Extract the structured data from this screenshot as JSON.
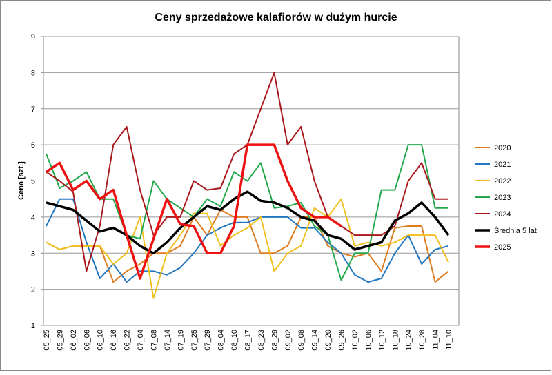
{
  "chart_data": {
    "type": "line",
    "title": "Ceny sprzedażowe kalafiorów w dużym hurcie",
    "y_label": "Cena [szt.]",
    "categories": [
      "05_25",
      "05_29",
      "06_02",
      "06_06",
      "06_10",
      "06_16",
      "06_22",
      "07_04",
      "07_08",
      "07_14",
      "07_19",
      "07_25",
      "07_29",
      "08_04",
      "08_10",
      "08_17",
      "08_23",
      "08_29",
      "09_02",
      "09_08",
      "09_14",
      "09_20",
      "09_26",
      "10_02",
      "10_06",
      "10_12",
      "10_18",
      "10_24",
      "10_28",
      "11_04",
      "11_10"
    ],
    "ylim": [
      1,
      9
    ],
    "yticks": [
      1,
      2,
      3,
      4,
      5,
      6,
      7,
      8,
      9
    ],
    "grid": true,
    "legend": "right",
    "series": [
      {
        "name": "2020",
        "color": "#e07b20",
        "width": 2,
        "values": [
          3.3,
          3.1,
          3.2,
          3.2,
          3.2,
          2.2,
          2.5,
          2.7,
          3.0,
          3.0,
          3.2,
          4.0,
          3.5,
          4.2,
          4.0,
          4.0,
          3.0,
          3.0,
          3.2,
          4.0,
          4.0,
          3.2,
          3.0,
          2.9,
          3.0,
          2.5,
          3.7,
          3.75,
          3.75,
          2.2,
          2.5
        ]
      },
      {
        "name": "2021",
        "color": "#2277c0",
        "width": 2,
        "values": [
          3.75,
          4.5,
          4.5,
          3.3,
          2.3,
          2.7,
          2.2,
          2.5,
          2.5,
          2.4,
          2.6,
          3.0,
          3.5,
          3.7,
          3.85,
          3.85,
          4.0,
          4.0,
          4.0,
          3.7,
          3.7,
          3.3,
          3.0,
          2.4,
          2.2,
          2.3,
          3.0,
          3.5,
          2.7,
          3.1,
          3.2
        ]
      },
      {
        "name": "2022",
        "color": "#f2c01e",
        "width": 2,
        "values": [
          3.3,
          3.1,
          3.2,
          3.2,
          3.2,
          2.7,
          3.0,
          4.0,
          1.75,
          3.0,
          3.5,
          4.1,
          4.1,
          3.2,
          3.5,
          3.7,
          4.0,
          2.5,
          3.0,
          3.2,
          4.25,
          4.0,
          4.5,
          3.2,
          3.3,
          3.2,
          3.3,
          3.5,
          3.5,
          3.5,
          2.75
        ]
      },
      {
        "name": "2023",
        "color": "#22a84a",
        "width": 2,
        "values": [
          5.75,
          4.8,
          5.0,
          5.25,
          4.5,
          4.5,
          3.5,
          3.4,
          5.0,
          4.5,
          4.25,
          4.0,
          4.5,
          4.3,
          5.25,
          5.0,
          5.5,
          4.25,
          4.3,
          4.4,
          3.75,
          3.5,
          2.25,
          3.0,
          3.0,
          4.75,
          4.75,
          6.0,
          6.0,
          4.25,
          4.25
        ]
      },
      {
        "name": "2024",
        "color": "#a8181c",
        "width": 2,
        "values": [
          5.25,
          5.0,
          4.7,
          2.5,
          3.75,
          6.0,
          6.5,
          4.75,
          3.5,
          4.0,
          4.0,
          5.0,
          4.75,
          4.8,
          5.75,
          6.0,
          7.0,
          8.0,
          6.0,
          6.5,
          5.0,
          4.0,
          3.75,
          3.5,
          3.5,
          3.5,
          3.75,
          5.0,
          5.5,
          4.5,
          4.5
        ]
      },
      {
        "name": "Średnia 5 lat",
        "color": "#000000",
        "width": 3.5,
        "values": [
          4.4,
          4.3,
          4.2,
          3.9,
          3.6,
          3.7,
          3.5,
          3.2,
          3.0,
          3.3,
          3.7,
          4.0,
          4.3,
          4.2,
          4.5,
          4.7,
          4.45,
          4.4,
          4.25,
          4.0,
          3.9,
          3.5,
          3.4,
          3.1,
          3.2,
          3.3,
          3.9,
          4.1,
          4.4,
          4.0,
          3.5
        ]
      },
      {
        "name": "2025",
        "color": "#ee1111",
        "width": 3.5,
        "values": [
          5.25,
          5.5,
          4.75,
          5.0,
          4.5,
          4.75,
          3.5,
          2.3,
          3.4,
          4.5,
          3.8,
          3.75,
          3.0,
          3.0,
          3.75,
          6.0,
          6.0,
          6.0,
          5.0,
          4.25,
          4.0,
          4.0,
          3.75,
          null,
          null,
          null,
          null,
          null,
          null,
          null,
          null
        ]
      }
    ]
  }
}
